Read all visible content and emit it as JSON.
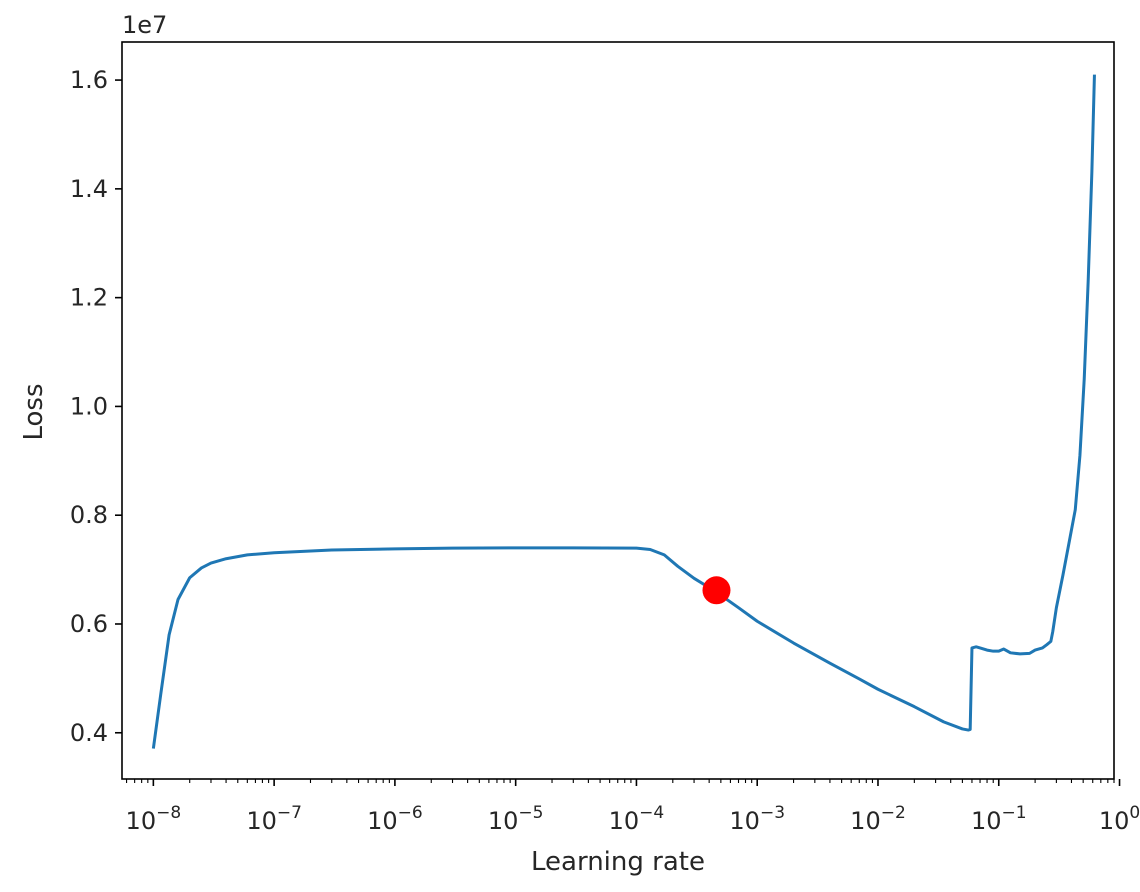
{
  "chart_data": {
    "type": "line",
    "xlabel": "Learning rate",
    "ylabel": "Loss",
    "x_scale": "log",
    "xlim": [
      5.5e-09,
      0.9
    ],
    "ylim": [
      3150000.0,
      16700000.0
    ],
    "y_offset_label": "1e7",
    "x_ticks": [
      {
        "value": 1e-08,
        "base": "10",
        "exp": "−8"
      },
      {
        "value": 1e-07,
        "base": "10",
        "exp": "−7"
      },
      {
        "value": 1e-06,
        "base": "10",
        "exp": "−6"
      },
      {
        "value": 1e-05,
        "base": "10",
        "exp": "−5"
      },
      {
        "value": 0.0001,
        "base": "10",
        "exp": "−4"
      },
      {
        "value": 0.001,
        "base": "10",
        "exp": "−3"
      },
      {
        "value": 0.01,
        "base": "10",
        "exp": "−2"
      },
      {
        "value": 0.1,
        "base": "10",
        "exp": "−1"
      },
      {
        "value": 1,
        "base": "10",
        "exp": "0"
      }
    ],
    "y_ticks": [
      {
        "value": 4000000,
        "label": "0.4"
      },
      {
        "value": 6000000,
        "label": "0.6"
      },
      {
        "value": 8000000,
        "label": "0.8"
      },
      {
        "value": 10000000,
        "label": "1.0"
      },
      {
        "value": 12000000,
        "label": "1.2"
      },
      {
        "value": 14000000,
        "label": "1.4"
      },
      {
        "value": 16000000,
        "label": "1.6"
      }
    ],
    "grid": false,
    "line_color": "#1f77b4",
    "marker_color": "#ff0000",
    "series": [
      {
        "x": [
          1e-08,
          1.15e-08,
          1.35e-08,
          1.6e-08,
          2e-08,
          2.5e-08,
          3e-08,
          4e-08,
          6e-08,
          1e-07,
          3e-07,
          1e-06,
          3e-06,
          1e-05,
          3e-05,
          0.0001,
          0.00013,
          0.00017,
          0.00022,
          0.0003,
          0.00045,
          0.0007,
          0.001,
          0.002,
          0.004,
          0.007,
          0.01,
          0.02,
          0.035,
          0.05,
          0.056,
          0.058,
          0.06,
          0.065,
          0.07,
          0.08,
          0.09,
          0.1,
          0.11,
          0.125,
          0.15,
          0.18,
          0.2,
          0.23,
          0.25,
          0.27,
          0.28,
          0.3,
          0.34,
          0.39,
          0.43,
          0.47,
          0.51,
          0.55,
          0.59,
          0.62
        ],
        "y": [
          3710000,
          4700000,
          5800000,
          6450000,
          6850000,
          7030000,
          7120000,
          7200000,
          7270000,
          7310000,
          7360000,
          7380000,
          7395000,
          7400000,
          7400000,
          7395000,
          7370000,
          7270000,
          7060000,
          6840000,
          6600000,
          6300000,
          6050000,
          5650000,
          5280000,
          4990000,
          4800000,
          4480000,
          4200000,
          4070000,
          4050000,
          4060000,
          5560000,
          5580000,
          5560000,
          5520000,
          5500000,
          5500000,
          5540000,
          5470000,
          5450000,
          5460000,
          5520000,
          5560000,
          5620000,
          5680000,
          5860000,
          6300000,
          6900000,
          7600000,
          8100000,
          9100000,
          10500000,
          12300000,
          14300000,
          16100000
        ]
      }
    ],
    "marker": {
      "x": 0.00046,
      "y": 6620000
    }
  }
}
